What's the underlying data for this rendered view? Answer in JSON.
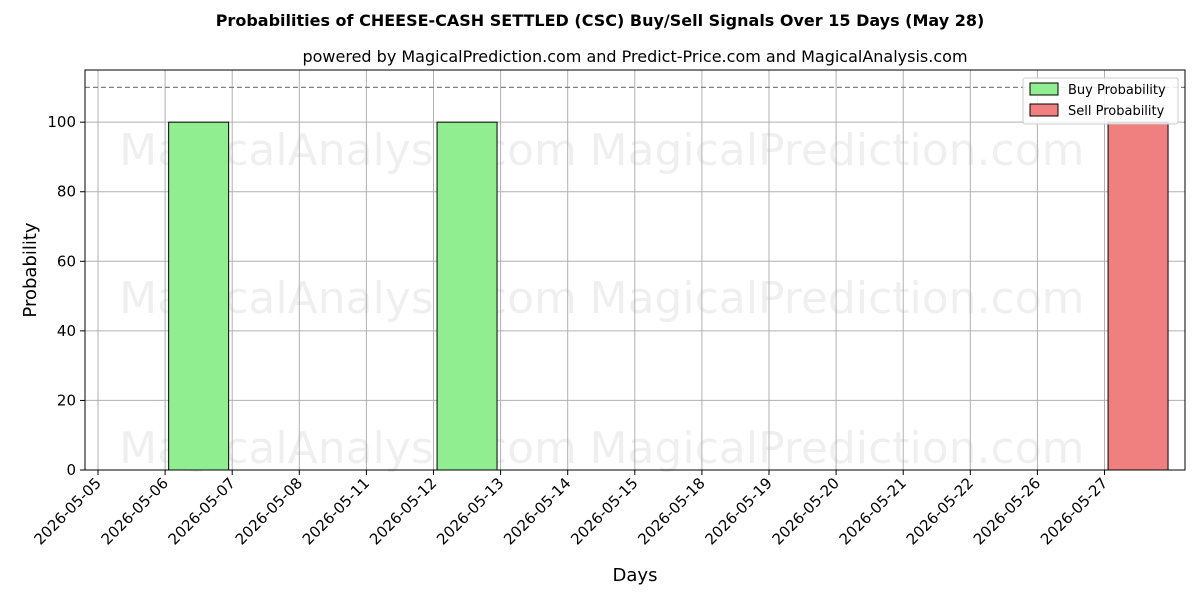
{
  "chart_data": {
    "type": "bar",
    "title": "Probabilities of CHEESE-CASH SETTLED (CSC) Buy/Sell Signals Over 15 Days (May 28)",
    "subtitle": "powered by MagicalPrediction.com and Predict-Price.com and MagicalAnalysis.com",
    "xlabel": "Days",
    "ylabel": "Probability",
    "categories": [
      "2026-05-05",
      "2026-05-06",
      "2026-05-07",
      "2026-05-08",
      "2026-05-11",
      "2026-05-12",
      "2026-05-13",
      "2026-05-14",
      "2026-05-15",
      "2026-05-18",
      "2026-05-19",
      "2026-05-20",
      "2026-05-21",
      "2026-05-22",
      "2026-05-26",
      "2026-05-27"
    ],
    "series": [
      {
        "name": "Buy Probability",
        "color": "#90ee90",
        "values": [
          0,
          100,
          0,
          0,
          0,
          100,
          0,
          0,
          0,
          0,
          0,
          0,
          0,
          0,
          0,
          0
        ]
      },
      {
        "name": "Sell Probability",
        "color": "#f08080",
        "values": [
          0,
          0,
          0,
          0,
          0,
          0,
          0,
          0,
          0,
          0,
          0,
          0,
          0,
          0,
          0,
          100
        ]
      }
    ],
    "ylim": [
      0,
      115
    ],
    "yticks": [
      0,
      20,
      40,
      60,
      80,
      100
    ],
    "reference_line": 110,
    "grid": true,
    "legend_placement": "top-right",
    "watermarks": [
      "MagicalAnalysis.com",
      "MagicalPrediction.com"
    ]
  }
}
